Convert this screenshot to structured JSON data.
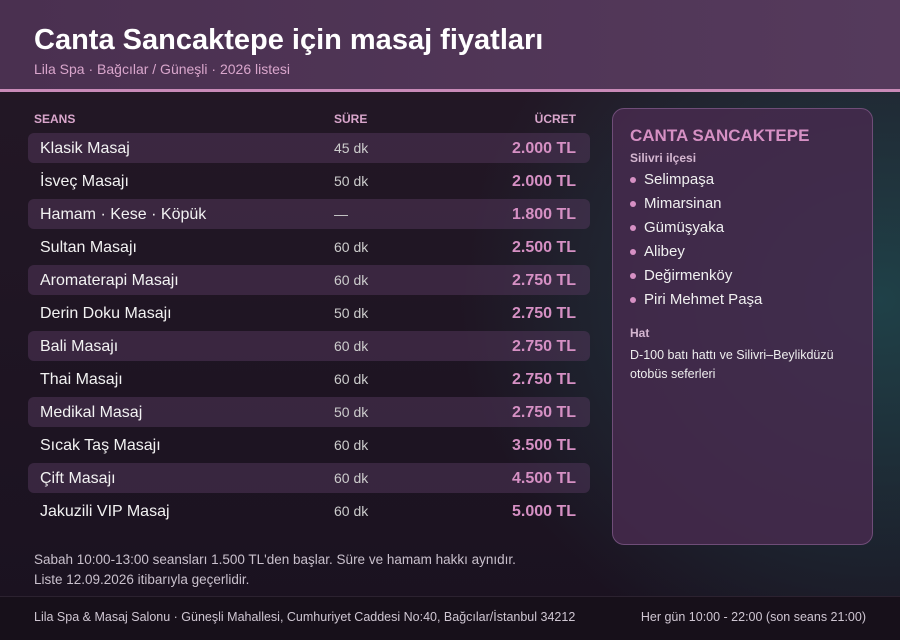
{
  "header": {
    "title": "Canta Sancaktepe için masaj fiyatları",
    "subtitle": "Lila Spa · Bağcılar / Güneşli · 2026 listesi"
  },
  "table": {
    "columns": [
      "SEANS",
      "SÜRE",
      "ÜCRET"
    ],
    "rows": [
      [
        "Klasik Masaj",
        "45 dk",
        "2.000 TL"
      ],
      [
        "İsveç Masajı",
        "50 dk",
        "2.000 TL"
      ],
      [
        "Hamam · Kese · Köpük",
        "—",
        "1.800 TL"
      ],
      [
        "Sultan Masajı",
        "60 dk",
        "2.500 TL"
      ],
      [
        "Aromaterapi Masajı",
        "60 dk",
        "2.750 TL"
      ],
      [
        "Derin Doku Masajı",
        "50 dk",
        "2.750 TL"
      ],
      [
        "Bali Masajı",
        "60 dk",
        "2.750 TL"
      ],
      [
        "Thai Masajı",
        "60 dk",
        "2.750 TL"
      ],
      [
        "Medikal Masaj",
        "50 dk",
        "2.750 TL"
      ],
      [
        "Sıcak Taş Masajı",
        "60 dk",
        "3.500 TL"
      ],
      [
        "Çift Masajı",
        "60 dk",
        "4.500 TL"
      ],
      [
        "Jakuzili VIP Masaj",
        "60 dk",
        "5.000 TL"
      ]
    ]
  },
  "notes": [
    "Sabah 10:00-13:00 seansları 1.500 TL'den başlar. Süre ve hamam hakkı aynıdır.",
    "Liste 12.09.2026 itibarıyla geçerlidir."
  ],
  "sidebar": {
    "title": "CANTA SANCAKTEPE",
    "subtitle": "Silivri ilçesi",
    "items": [
      "Selimpaşa",
      "Mimarsinan",
      "Gümüşyaka",
      "Alibey",
      "Değirmenköy",
      "Piri Mehmet Paşa"
    ],
    "line_title": "Hat",
    "line_text": "D-100 batı hattı ve Silivri–Beylikdüzü otobüs seferleri"
  },
  "footer": {
    "address": "Lila Spa & Masaj Salonu · Güneşli Mahallesi, Cumhuriyet Caddesi No:40, Bağcılar/İstanbul 34212",
    "hours": "Her gün 10:00 - 22:00 (son seans 21:00)"
  }
}
